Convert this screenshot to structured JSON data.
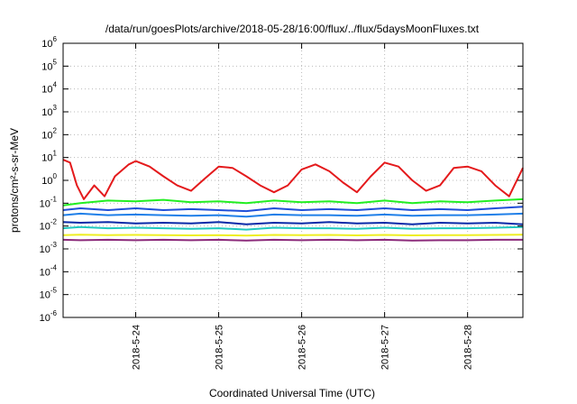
{
  "chart_data": {
    "type": "line",
    "title": "/data/run/goesPlots/archive/2018-05-28/16:00/flux/../flux/5daysMoonFluxes.txt",
    "xlabel": "Coordinated Universal Time (UTC)",
    "ylabel": "protons/cm²-s-sr-MeV",
    "yscale": "log",
    "ylim_exponent": [
      -6,
      6
    ],
    "y_tick_labels": [
      {
        "base": "10",
        "exp": "-6"
      },
      {
        "base": "10",
        "exp": "-5"
      },
      {
        "base": "10",
        "exp": "-4"
      },
      {
        "base": "10",
        "exp": "-3"
      },
      {
        "base": "10",
        "exp": "-2"
      },
      {
        "base": "10",
        "exp": "-1"
      },
      {
        "base": "10",
        "exp": "0"
      },
      {
        "base": "10",
        "exp": "1"
      },
      {
        "base": "10",
        "exp": "2"
      },
      {
        "base": "10",
        "exp": "3"
      },
      {
        "base": "10",
        "exp": "4"
      },
      {
        "base": "10",
        "exp": "5"
      },
      {
        "base": "10",
        "exp": "6"
      }
    ],
    "xlim": [
      "2018-05-23 03:00",
      "2018-05-28 16:00"
    ],
    "x_ticks": [
      "2018-5-24",
      "2018-5-25",
      "2018-5-26",
      "2018-5-27",
      "2018-5-28"
    ],
    "x_tick_dates": [
      "2018-05-24 00:00",
      "2018-05-25 00:00",
      "2018-05-26 00:00",
      "2018-05-27 00:00",
      "2018-05-28 00:00"
    ],
    "grid": true,
    "series": [
      {
        "color": "#e41a1c",
        "x": [
          "2018-05-23 03:00",
          "2018-05-23 05:00",
          "2018-05-23 07:00",
          "2018-05-23 09:00",
          "2018-05-23 12:00",
          "2018-05-23 15:00",
          "2018-05-23 18:00",
          "2018-05-23 22:00",
          "2018-05-24 00:00",
          "2018-05-24 04:00",
          "2018-05-24 08:00",
          "2018-05-24 12:00",
          "2018-05-24 16:00",
          "2018-05-24 20:00",
          "2018-05-25 00:00",
          "2018-05-25 04:00",
          "2018-05-25 08:00",
          "2018-05-25 12:00",
          "2018-05-25 16:00",
          "2018-05-25 20:00",
          "2018-05-26 00:00",
          "2018-05-26 04:00",
          "2018-05-26 08:00",
          "2018-05-26 12:00",
          "2018-05-26 16:00",
          "2018-05-26 20:00",
          "2018-05-27 00:00",
          "2018-05-27 04:00",
          "2018-05-27 08:00",
          "2018-05-27 12:00",
          "2018-05-27 16:00",
          "2018-05-27 20:00",
          "2018-05-28 00:00",
          "2018-05-28 04:00",
          "2018-05-28 08:00",
          "2018-05-28 12:00",
          "2018-05-28 16:00"
        ],
        "y": [
          8,
          6,
          0.6,
          0.15,
          0.6,
          0.2,
          1.5,
          5,
          7,
          4,
          1.5,
          0.6,
          0.35,
          1.2,
          4,
          3.5,
          1.5,
          0.6,
          0.3,
          0.6,
          3,
          5,
          2.5,
          0.8,
          0.3,
          1.5,
          6,
          4,
          1,
          0.35,
          0.6,
          3.5,
          4,
          2.5,
          0.6,
          0.2,
          3.5
        ]
      },
      {
        "color": "#22ee22",
        "x": [
          "2018-05-23 03:00",
          "2018-05-23 08:00",
          "2018-05-23 16:00",
          "2018-05-24 00:00",
          "2018-05-24 08:00",
          "2018-05-24 16:00",
          "2018-05-25 00:00",
          "2018-05-25 08:00",
          "2018-05-25 16:00",
          "2018-05-26 00:00",
          "2018-05-26 08:00",
          "2018-05-26 16:00",
          "2018-05-27 00:00",
          "2018-05-27 08:00",
          "2018-05-27 16:00",
          "2018-05-28 00:00",
          "2018-05-28 08:00",
          "2018-05-28 16:00"
        ],
        "y": [
          0.08,
          0.1,
          0.13,
          0.12,
          0.14,
          0.11,
          0.12,
          0.1,
          0.13,
          0.11,
          0.12,
          0.1,
          0.13,
          0.1,
          0.12,
          0.11,
          0.13,
          0.15
        ]
      },
      {
        "color": "#1f4fd8",
        "x": [
          "2018-05-23 03:00",
          "2018-05-23 08:00",
          "2018-05-23 16:00",
          "2018-05-24 00:00",
          "2018-05-24 08:00",
          "2018-05-24 16:00",
          "2018-05-25 00:00",
          "2018-05-25 08:00",
          "2018-05-25 16:00",
          "2018-05-26 00:00",
          "2018-05-26 08:00",
          "2018-05-26 16:00",
          "2018-05-27 00:00",
          "2018-05-27 08:00",
          "2018-05-27 16:00",
          "2018-05-28 00:00",
          "2018-05-28 08:00",
          "2018-05-28 16:00"
        ],
        "y": [
          0.05,
          0.06,
          0.05,
          0.06,
          0.05,
          0.055,
          0.05,
          0.045,
          0.06,
          0.05,
          0.055,
          0.05,
          0.06,
          0.05,
          0.055,
          0.05,
          0.06,
          0.07
        ]
      },
      {
        "color": "#1f7fe8",
        "x": [
          "2018-05-23 03:00",
          "2018-05-23 08:00",
          "2018-05-23 16:00",
          "2018-05-24 00:00",
          "2018-05-24 08:00",
          "2018-05-24 16:00",
          "2018-05-25 00:00",
          "2018-05-25 08:00",
          "2018-05-25 16:00",
          "2018-05-26 00:00",
          "2018-05-26 08:00",
          "2018-05-26 16:00",
          "2018-05-27 00:00",
          "2018-05-27 08:00",
          "2018-05-27 16:00",
          "2018-05-28 00:00",
          "2018-05-28 08:00",
          "2018-05-28 16:00"
        ],
        "y": [
          0.03,
          0.035,
          0.03,
          0.032,
          0.03,
          0.028,
          0.03,
          0.026,
          0.032,
          0.03,
          0.03,
          0.028,
          0.032,
          0.028,
          0.03,
          0.03,
          0.032,
          0.035
        ]
      },
      {
        "color": "#0a2aa8",
        "x": [
          "2018-05-23 03:00",
          "2018-05-23 08:00",
          "2018-05-23 16:00",
          "2018-05-24 00:00",
          "2018-05-24 08:00",
          "2018-05-24 16:00",
          "2018-05-25 00:00",
          "2018-05-25 08:00",
          "2018-05-25 16:00",
          "2018-05-26 00:00",
          "2018-05-26 08:00",
          "2018-05-26 16:00",
          "2018-05-27 00:00",
          "2018-05-27 08:00",
          "2018-05-27 16:00",
          "2018-05-28 00:00",
          "2018-05-28 08:00",
          "2018-05-28 16:00"
        ],
        "y": [
          0.015,
          0.014,
          0.015,
          0.013,
          0.014,
          0.013,
          0.015,
          0.012,
          0.014,
          0.013,
          0.015,
          0.013,
          0.014,
          0.012,
          0.014,
          0.013,
          0.014,
          0.012
        ]
      },
      {
        "color": "#20c8c0",
        "x": [
          "2018-05-23 03:00",
          "2018-05-23 08:00",
          "2018-05-23 16:00",
          "2018-05-24 00:00",
          "2018-05-24 08:00",
          "2018-05-24 16:00",
          "2018-05-25 00:00",
          "2018-05-25 08:00",
          "2018-05-25 16:00",
          "2018-05-26 00:00",
          "2018-05-26 08:00",
          "2018-05-26 16:00",
          "2018-05-27 00:00",
          "2018-05-27 08:00",
          "2018-05-27 16:00",
          "2018-05-28 00:00",
          "2018-05-28 08:00",
          "2018-05-28 16:00"
        ],
        "y": [
          0.008,
          0.009,
          0.008,
          0.0085,
          0.008,
          0.0075,
          0.008,
          0.007,
          0.0085,
          0.008,
          0.008,
          0.0075,
          0.0085,
          0.0075,
          0.008,
          0.008,
          0.0085,
          0.009
        ]
      },
      {
        "color": "#eeee22",
        "x": [
          "2018-05-23 03:00",
          "2018-05-23 08:00",
          "2018-05-23 16:00",
          "2018-05-24 00:00",
          "2018-05-24 08:00",
          "2018-05-24 16:00",
          "2018-05-25 00:00",
          "2018-05-25 08:00",
          "2018-05-25 16:00",
          "2018-05-26 00:00",
          "2018-05-26 08:00",
          "2018-05-26 16:00",
          "2018-05-27 00:00",
          "2018-05-27 08:00",
          "2018-05-27 16:00",
          "2018-05-28 00:00",
          "2018-05-28 08:00",
          "2018-05-28 16:00"
        ],
        "y": [
          0.004,
          0.0042,
          0.004,
          0.0041,
          0.004,
          0.0039,
          0.004,
          0.0038,
          0.0041,
          0.004,
          0.0041,
          0.0039,
          0.0041,
          0.0039,
          0.004,
          0.004,
          0.0041,
          0.0042
        ]
      },
      {
        "color": "#8b2a7a",
        "x": [
          "2018-05-23 03:00",
          "2018-05-23 08:00",
          "2018-05-23 16:00",
          "2018-05-24 00:00",
          "2018-05-24 08:00",
          "2018-05-24 16:00",
          "2018-05-25 00:00",
          "2018-05-25 08:00",
          "2018-05-25 16:00",
          "2018-05-26 00:00",
          "2018-05-26 08:00",
          "2018-05-26 16:00",
          "2018-05-27 00:00",
          "2018-05-27 08:00",
          "2018-05-27 16:00",
          "2018-05-28 00:00",
          "2018-05-28 08:00",
          "2018-05-28 16:00"
        ],
        "y": [
          0.0025,
          0.0024,
          0.0025,
          0.0024,
          0.0025,
          0.0024,
          0.0025,
          0.0023,
          0.0025,
          0.0024,
          0.0025,
          0.0024,
          0.0025,
          0.0023,
          0.0024,
          0.0024,
          0.0025,
          0.0025
        ]
      }
    ]
  }
}
